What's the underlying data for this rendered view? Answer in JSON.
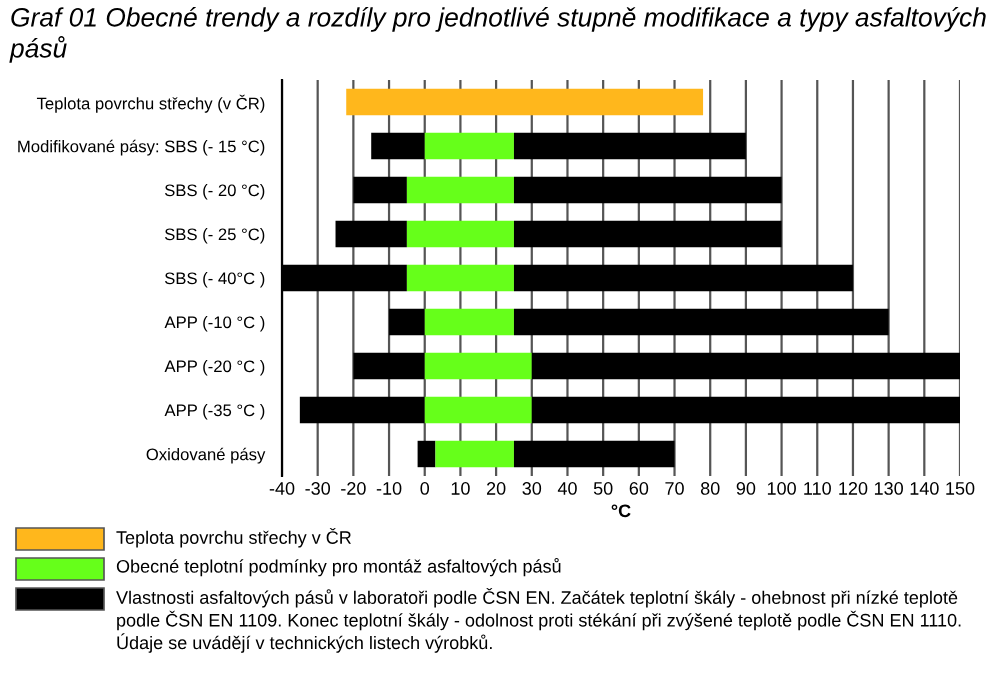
{
  "chart_data": {
    "type": "bar",
    "orientation": "horizontal",
    "title": "Graf 01 Obecné trendy a rozdíly pro jednotlivé stupně modifikace a typy asfaltových pásů",
    "xlabel": "°C",
    "categories": [
      "Teplota povrchu střechy (v ČR)",
      "Modifikované pásy: SBS (- 15 °C)",
      "SBS (- 20 °C)",
      "SBS (- 25 °C)",
      "SBS (- 40°C )",
      "APP (-10 °C )",
      "APP (-20 °C )",
      "APP (-35 °C )",
      "Oxidované pásy"
    ],
    "series": [
      {
        "name": "Teplota povrchu střechy v ČR",
        "color": "#ffb71c",
        "base": [
          -22,
          null,
          null,
          null,
          null,
          null,
          null,
          null,
          null
        ],
        "values": [
          100,
          null,
          null,
          null,
          null,
          null,
          null,
          null,
          null
        ]
      },
      {
        "color": "#000000",
        "base": [
          null,
          -15,
          -20,
          -25,
          -40,
          -10,
          -20,
          -35,
          -2
        ],
        "values": [
          null,
          15,
          15,
          20,
          35,
          10,
          20,
          35,
          5
        ]
      },
      {
        "name": "Obecné teplotní podmínky pro montáž asfaltových pásů",
        "color": "#66ff1a",
        "base": [
          null,
          0,
          -5,
          -5,
          -5,
          0,
          0,
          0,
          3
        ],
        "values": [
          null,
          25,
          30,
          30,
          30,
          25,
          30,
          30,
          22
        ]
      },
      {
        "name": "Vlastnosti asfaltových pásů v laboratoři podle ČSN EN. Začátek teplotní škály - ohebnost při nízké teplotě podle ČSN EN 1109. Konec teplotní škály - odolnost proti stékání při zvýšené teplotě podle ČSN EN 1110. Údaje se uvádějí v technických listech výrobků.",
        "color": "#000000",
        "base": [
          null,
          25,
          25,
          25,
          25,
          25,
          30,
          30,
          25
        ],
        "values": [
          null,
          65,
          75,
          75,
          95,
          105,
          120,
          120,
          45
        ]
      }
    ],
    "xlim": [
      -40,
      150
    ],
    "xticks": [
      -40,
      -30,
      -20,
      -10,
      0,
      10,
      20,
      30,
      40,
      50,
      60,
      70,
      80,
      90,
      100,
      110,
      120,
      130,
      140,
      150
    ],
    "grid": "x",
    "legend": "bottom"
  }
}
